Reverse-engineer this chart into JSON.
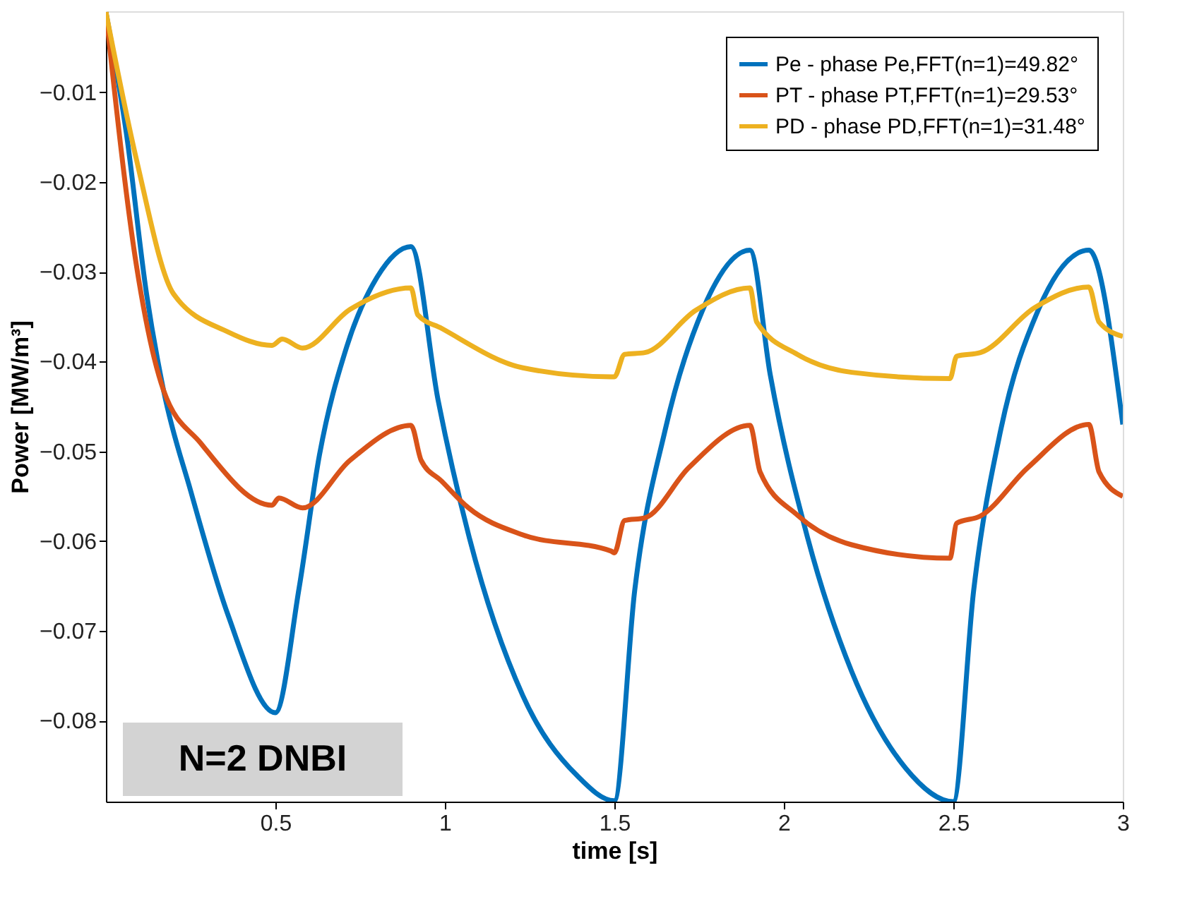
{
  "chart_data": {
    "type": "line",
    "xlabel": "time [s]",
    "ylabel": "Power [MW/m³]",
    "annotations": [
      "N=2 DNBI"
    ],
    "xlim": [
      0,
      3
    ],
    "xticks": [
      0.5,
      1,
      1.5,
      2,
      2.5,
      3
    ],
    "ylim": [
      -0.089,
      -0.001
    ],
    "yticks": [
      -0.08,
      -0.07,
      -0.06,
      -0.05,
      -0.04,
      -0.03,
      -0.02,
      -0.01
    ],
    "grid": false,
    "legend": "top right",
    "line_style": "solid",
    "marker": "none",
    "series": [
      {
        "name": "Pe - phase Pe,FFT(n=1)=49.82°",
        "color": "#0072bd",
        "x": [
          0,
          0.06,
          0.12,
          0.17,
          0.25,
          0.36,
          0.5,
          0.57,
          0.63,
          0.71,
          0.8,
          0.9,
          0.98,
          1.07,
          1.23,
          1.39,
          1.5,
          1.56,
          1.65,
          1.76,
          1.9,
          1.96,
          2.07,
          2.2,
          2.36,
          2.5,
          2.56,
          2.64,
          2.75,
          2.9,
          3.0
        ],
        "values": [
          -0.0011,
          -0.0145,
          -0.0325,
          -0.0432,
          -0.0544,
          -0.0682,
          -0.0791,
          -0.0652,
          -0.0504,
          -0.0384,
          -0.0306,
          -0.0272,
          -0.0443,
          -0.0593,
          -0.0772,
          -0.0861,
          -0.0889,
          -0.0655,
          -0.0476,
          -0.0343,
          -0.0276,
          -0.0415,
          -0.0596,
          -0.0745,
          -0.0853,
          -0.089,
          -0.0655,
          -0.0476,
          -0.0343,
          -0.0276,
          -0.047
        ]
      },
      {
        "name": "PT - phase PT,FFT(n=1)=29.53°",
        "color": "#d95319",
        "x": [
          0,
          0.09,
          0.17,
          0.28,
          0.49,
          0.51,
          0.58,
          0.72,
          0.9,
          0.93,
          0.99,
          1.07,
          1.23,
          1.49,
          1.5,
          1.53,
          1.59,
          1.72,
          1.9,
          1.93,
          2.04,
          2.2,
          2.49,
          2.51,
          2.58,
          2.72,
          2.9,
          2.93,
          3.0
        ],
        "values": [
          -0.0011,
          -0.0293,
          -0.0432,
          -0.0491,
          -0.056,
          -0.0552,
          -0.0563,
          -0.051,
          -0.0471,
          -0.051,
          -0.0533,
          -0.0563,
          -0.0593,
          -0.0611,
          -0.0613,
          -0.0577,
          -0.0574,
          -0.0518,
          -0.0471,
          -0.0523,
          -0.0571,
          -0.0604,
          -0.0619,
          -0.058,
          -0.0572,
          -0.0518,
          -0.047,
          -0.0523,
          -0.055
        ]
      },
      {
        "name": "PD - phase PD,FFT(n=1)=31.48°",
        "color": "#edb120",
        "x": [
          0,
          0.09,
          0.2,
          0.36,
          0.49,
          0.52,
          0.58,
          0.72,
          0.9,
          0.92,
          0.99,
          1.23,
          1.49,
          1.5,
          1.53,
          1.59,
          1.74,
          1.9,
          1.92,
          2.04,
          2.2,
          2.49,
          2.51,
          2.58,
          2.74,
          2.9,
          2.93,
          3.0
        ],
        "values": [
          -0.0011,
          -0.0175,
          -0.0325,
          -0.0367,
          -0.0382,
          -0.0375,
          -0.0385,
          -0.0342,
          -0.0318,
          -0.0348,
          -0.0363,
          -0.0407,
          -0.0417,
          -0.0417,
          -0.0392,
          -0.039,
          -0.0343,
          -0.0318,
          -0.0356,
          -0.0392,
          -0.0412,
          -0.0419,
          -0.0394,
          -0.039,
          -0.034,
          -0.0317,
          -0.0356,
          -0.0372
        ]
      }
    ]
  }
}
